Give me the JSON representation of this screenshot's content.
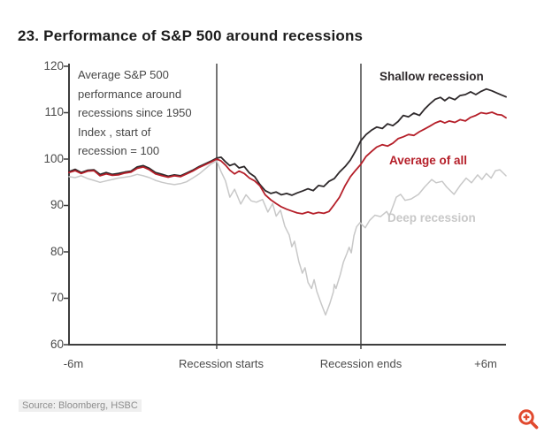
{
  "title": "23. Performance of S&P 500 around recessions",
  "annotation": {
    "lines": [
      "Average S&P 500",
      "performance around",
      "recessions since 1950",
      "Index , start of",
      "recession = 100"
    ]
  },
  "source": "Source: Bloomberg, HSBC",
  "zoom_icon": {
    "name": "zoom-in-magnifier",
    "color": "#e1492e"
  },
  "colors": {
    "axis": "#3d3d3d",
    "event_line": "#3d3d3d",
    "tick_label": "#4a4a4a",
    "title_text": "#1c1c1c"
  },
  "chart_data": {
    "type": "line",
    "title": "23. Performance of S&P 500 around recessions",
    "xlabel": "",
    "ylabel": "",
    "ylim": [
      60,
      120
    ],
    "yticks": [
      120,
      110,
      100,
      90,
      80,
      70,
      60
    ],
    "xticklabels": [
      "-6m",
      "Recession starts",
      "Recession ends",
      "+6m"
    ],
    "x_landmarks_pct": {
      "minus_6m": 0,
      "recession_starts": 33.8,
      "recession_ends": 66.8,
      "plus_6m": 100
    },
    "event_lines_pct": [
      33.8,
      66.8
    ],
    "grid": false,
    "legend_position": "inline-labels",
    "series": [
      {
        "name": "Deep recession",
        "color": "#c8c8c8",
        "width": 1.5,
        "points": [
          [
            0,
            96.2
          ],
          [
            1.4,
            96
          ],
          [
            2.8,
            96.4
          ],
          [
            4.3,
            95.8
          ],
          [
            5.7,
            95.4
          ],
          [
            7.1,
            95
          ],
          [
            8.5,
            95.3
          ],
          [
            9.9,
            95.6
          ],
          [
            11.3,
            95.9
          ],
          [
            12.8,
            96.1
          ],
          [
            14.2,
            96.3
          ],
          [
            15.6,
            96.7
          ],
          [
            17,
            96.4
          ],
          [
            18.4,
            96
          ],
          [
            19.8,
            95.4
          ],
          [
            21.3,
            95
          ],
          [
            22.7,
            94.7
          ],
          [
            24.1,
            94.5
          ],
          [
            25.5,
            94.7
          ],
          [
            26.9,
            95.1
          ],
          [
            28.3,
            95.9
          ],
          [
            29.8,
            96.8
          ],
          [
            31.2,
            97.9
          ],
          [
            32.6,
            99
          ],
          [
            33.8,
            99.6
          ],
          [
            34.8,
            97.3
          ],
          [
            35.8,
            95.3
          ],
          [
            36.8,
            91.8
          ],
          [
            37.9,
            93.5
          ],
          [
            39.3,
            90.3
          ],
          [
            40.5,
            92.3
          ],
          [
            41.7,
            91
          ],
          [
            42.9,
            90.7
          ],
          [
            44.3,
            91.3
          ],
          [
            45.5,
            88.6
          ],
          [
            46.6,
            90.4
          ],
          [
            47.4,
            87.7
          ],
          [
            48.4,
            89
          ],
          [
            49.4,
            85.5
          ],
          [
            50.4,
            83.6
          ],
          [
            51,
            81.1
          ],
          [
            51.6,
            82.3
          ],
          [
            52.6,
            77.9
          ],
          [
            53.4,
            75.4
          ],
          [
            54,
            76.6
          ],
          [
            54.7,
            73.4
          ],
          [
            55.5,
            72.1
          ],
          [
            56.1,
            74
          ],
          [
            56.7,
            71.5
          ],
          [
            57.7,
            68.9
          ],
          [
            58.7,
            66.4
          ],
          [
            59.7,
            68.9
          ],
          [
            60.5,
            71.4
          ],
          [
            60.7,
            73
          ],
          [
            61.1,
            72.1
          ],
          [
            62.1,
            75.2
          ],
          [
            62.8,
            77.8
          ],
          [
            63.6,
            79.7
          ],
          [
            64.1,
            81
          ],
          [
            64.6,
            79.8
          ],
          [
            65.2,
            83.5
          ],
          [
            65.8,
            85.4
          ],
          [
            66.6,
            86.3
          ],
          [
            67.2,
            85.7
          ],
          [
            67.8,
            85.2
          ],
          [
            68.8,
            86.8
          ],
          [
            70,
            87.9
          ],
          [
            71.3,
            87.6
          ],
          [
            72.7,
            88.7
          ],
          [
            73.3,
            87.7
          ],
          [
            74.9,
            91.8
          ],
          [
            75.9,
            92.4
          ],
          [
            76.9,
            91.1
          ],
          [
            78.3,
            91.4
          ],
          [
            80,
            92.4
          ],
          [
            81.4,
            94
          ],
          [
            83,
            95.6
          ],
          [
            84,
            94.9
          ],
          [
            85.4,
            95.2
          ],
          [
            86.4,
            94
          ],
          [
            88.1,
            92.4
          ],
          [
            89.5,
            94.3
          ],
          [
            90.9,
            95.9
          ],
          [
            92.1,
            94.9
          ],
          [
            93.5,
            96.6
          ],
          [
            94.5,
            95.6
          ],
          [
            95.5,
            96.9
          ],
          [
            96.6,
            95.9
          ],
          [
            97.6,
            97.5
          ],
          [
            98.6,
            97.7
          ],
          [
            100,
            96.4
          ]
        ]
      },
      {
        "name": "Shallow recession",
        "color": "#2e292b",
        "width": 1.8,
        "points": [
          [
            0,
            97.3
          ],
          [
            1.4,
            97.8
          ],
          [
            2.8,
            97.1
          ],
          [
            4.3,
            97.6
          ],
          [
            5.7,
            97.7
          ],
          [
            7.1,
            96.7
          ],
          [
            8.5,
            97.1
          ],
          [
            9.9,
            96.7
          ],
          [
            11.3,
            96.9
          ],
          [
            12.8,
            97.2
          ],
          [
            14.2,
            97.4
          ],
          [
            15.6,
            98.3
          ],
          [
            17,
            98.6
          ],
          [
            18.4,
            98
          ],
          [
            19.8,
            97.1
          ],
          [
            21.3,
            96.7
          ],
          [
            22.7,
            96.3
          ],
          [
            24.1,
            96.6
          ],
          [
            25.5,
            96.4
          ],
          [
            26.9,
            97
          ],
          [
            28.3,
            97.6
          ],
          [
            29.8,
            98.4
          ],
          [
            31.2,
            99
          ],
          [
            32.6,
            99.6
          ],
          [
            33.8,
            100.2
          ],
          [
            34.8,
            100.4
          ],
          [
            35.8,
            99.4
          ],
          [
            36.8,
            98.6
          ],
          [
            37.9,
            99
          ],
          [
            38.9,
            98.1
          ],
          [
            40.1,
            98.4
          ],
          [
            41.3,
            97
          ],
          [
            42.5,
            96.2
          ],
          [
            43.7,
            94.5
          ],
          [
            44.9,
            93.2
          ],
          [
            46.2,
            92.6
          ],
          [
            47.4,
            92.9
          ],
          [
            48.6,
            92.3
          ],
          [
            49.8,
            92.6
          ],
          [
            51,
            92.2
          ],
          [
            52.2,
            92.7
          ],
          [
            53.4,
            93.1
          ],
          [
            54.7,
            93.6
          ],
          [
            55.9,
            93.2
          ],
          [
            57.1,
            94.3
          ],
          [
            58.3,
            94.1
          ],
          [
            59.5,
            95.2
          ],
          [
            60.7,
            95.8
          ],
          [
            61.9,
            97.2
          ],
          [
            63.2,
            98.4
          ],
          [
            64.4,
            99.8
          ],
          [
            65.6,
            101.8
          ],
          [
            66.8,
            104
          ],
          [
            68,
            105.3
          ],
          [
            69.2,
            106.2
          ],
          [
            70.4,
            106.9
          ],
          [
            71.7,
            106.6
          ],
          [
            72.9,
            107.6
          ],
          [
            74.1,
            107.2
          ],
          [
            75.3,
            108.1
          ],
          [
            76.5,
            109.4
          ],
          [
            77.7,
            109.1
          ],
          [
            78.9,
            109.9
          ],
          [
            80.2,
            109.4
          ],
          [
            81.4,
            110.8
          ],
          [
            82.6,
            111.9
          ],
          [
            83.8,
            112.9
          ],
          [
            85,
            113.3
          ],
          [
            86,
            112.6
          ],
          [
            87,
            113.3
          ],
          [
            88.3,
            112.8
          ],
          [
            89.5,
            113.7
          ],
          [
            90.7,
            113.9
          ],
          [
            91.9,
            114.5
          ],
          [
            93.1,
            113.9
          ],
          [
            94.3,
            114.6
          ],
          [
            95.5,
            115.1
          ],
          [
            96.8,
            114.7
          ],
          [
            98,
            114.2
          ],
          [
            99,
            113.8
          ],
          [
            100,
            113.4
          ]
        ]
      },
      {
        "name": "Average of all",
        "color": "#b51f29",
        "width": 1.8,
        "points": [
          [
            0,
            97.1
          ],
          [
            1.4,
            97.5
          ],
          [
            2.8,
            96.9
          ],
          [
            4.3,
            97.4
          ],
          [
            5.7,
            97.5
          ],
          [
            7.1,
            96.4
          ],
          [
            8.5,
            96.8
          ],
          [
            9.9,
            96.5
          ],
          [
            11.3,
            96.6
          ],
          [
            12.8,
            97
          ],
          [
            14.2,
            97.2
          ],
          [
            15.6,
            98
          ],
          [
            17,
            98.3
          ],
          [
            18.4,
            97.7
          ],
          [
            19.8,
            96.8
          ],
          [
            21.3,
            96.4
          ],
          [
            22.7,
            96.1
          ],
          [
            24.1,
            96.4
          ],
          [
            25.5,
            96.2
          ],
          [
            26.9,
            96.8
          ],
          [
            28.3,
            97.4
          ],
          [
            29.8,
            98.2
          ],
          [
            31.2,
            98.8
          ],
          [
            32.6,
            99.4
          ],
          [
            33.8,
            100
          ],
          [
            34.8,
            99.6
          ],
          [
            35.8,
            98.7
          ],
          [
            36.8,
            97.6
          ],
          [
            37.9,
            96.8
          ],
          [
            38.9,
            97.4
          ],
          [
            40.1,
            96.9
          ],
          [
            41.3,
            95.9
          ],
          [
            42.5,
            95.3
          ],
          [
            43.7,
            94.2
          ],
          [
            44.9,
            92.3
          ],
          [
            46.2,
            91.2
          ],
          [
            47.4,
            90.4
          ],
          [
            48.6,
            89.7
          ],
          [
            49.8,
            89.2
          ],
          [
            51,
            88.8
          ],
          [
            52.2,
            88.4
          ],
          [
            53.4,
            88.2
          ],
          [
            54.7,
            88.6
          ],
          [
            55.9,
            88.2
          ],
          [
            57.1,
            88.5
          ],
          [
            58.3,
            88.3
          ],
          [
            59.5,
            88.7
          ],
          [
            60.7,
            90.2
          ],
          [
            61.9,
            91.8
          ],
          [
            63.2,
            94.3
          ],
          [
            64.4,
            96.2
          ],
          [
            65.6,
            97.6
          ],
          [
            66.8,
            98.9
          ],
          [
            68,
            100.6
          ],
          [
            69.2,
            101.6
          ],
          [
            70.4,
            102.6
          ],
          [
            71.7,
            103.1
          ],
          [
            72.9,
            102.8
          ],
          [
            74.1,
            103.4
          ],
          [
            75.3,
            104.4
          ],
          [
            76.5,
            104.8
          ],
          [
            77.7,
            105.3
          ],
          [
            78.9,
            105.1
          ],
          [
            80.2,
            105.9
          ],
          [
            81.4,
            106.5
          ],
          [
            82.6,
            107.1
          ],
          [
            83.8,
            107.8
          ],
          [
            85,
            108.2
          ],
          [
            86,
            107.8
          ],
          [
            87,
            108.2
          ],
          [
            88.3,
            107.9
          ],
          [
            89.5,
            108.5
          ],
          [
            90.7,
            108.2
          ],
          [
            91.9,
            109
          ],
          [
            93.1,
            109.4
          ],
          [
            94.3,
            110
          ],
          [
            95.5,
            109.8
          ],
          [
            96.8,
            110.1
          ],
          [
            98,
            109.6
          ],
          [
            99,
            109.5
          ],
          [
            100,
            108.9
          ]
        ]
      }
    ]
  }
}
